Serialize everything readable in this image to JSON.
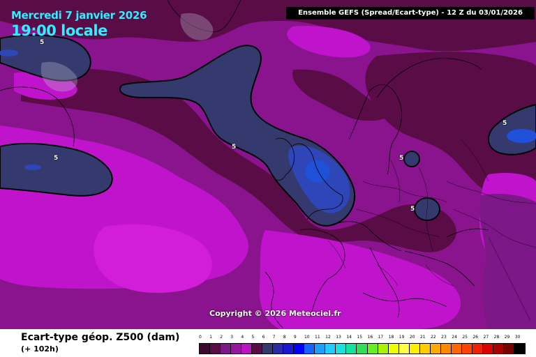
{
  "header": {
    "date": "Mercredi 7 janvier 2026",
    "local_time": "19:00 locale",
    "ensemble": "Ensemble GEFS  (Spread/Ecart-type) - 12 Z du 03/01/2026"
  },
  "map": {
    "copyright": "Copyright © 2026 Meteociel.fr",
    "contour_labels": [
      "5",
      "5",
      "5",
      "5",
      "5",
      "5",
      "5"
    ],
    "colors": {
      "background": "#8a148e",
      "low_maroon": "#5a0c47",
      "mid_purple": "#7c1788",
      "light_magenta": "#c014cc",
      "very_light": "#d21ed8",
      "navy": "#343a6e",
      "blue": "#2f46b8",
      "bright_blue": "#1f50d8",
      "coast": "#000000",
      "contour": "#000000"
    }
  },
  "legend": {
    "title": "Ecart-type géop. Z500 (dam)",
    "subtitle": "(+ 102h)",
    "ticks": [
      "0",
      "1",
      "2",
      "3",
      "4",
      "5",
      "6",
      "7",
      "8",
      "9",
      "10",
      "11",
      "12",
      "13",
      "14",
      "15",
      "16",
      "17",
      "18",
      "19",
      "20",
      "21",
      "22",
      "23",
      "24",
      "25",
      "26",
      "27",
      "28",
      "29",
      "30"
    ],
    "colors": [
      "#3d0a2e",
      "#5a0c47",
      "#7c1788",
      "#9616a0",
      "#b814c2",
      "#5a0c47",
      "#343a6e",
      "#2a2aa8",
      "#1a1acc",
      "#0000ff",
      "#1463ff",
      "#1aa0ff",
      "#22ccff",
      "#1ae0e0",
      "#14e0a0",
      "#33dd55",
      "#66ee22",
      "#aaf000",
      "#eeff00",
      "#ffff44",
      "#ffee00",
      "#ffcc00",
      "#ffaa00",
      "#ff8800",
      "#ff6600",
      "#ff4400",
      "#ee2200",
      "#dd0000",
      "#aa0000",
      "#770000",
      "#000000"
    ]
  }
}
